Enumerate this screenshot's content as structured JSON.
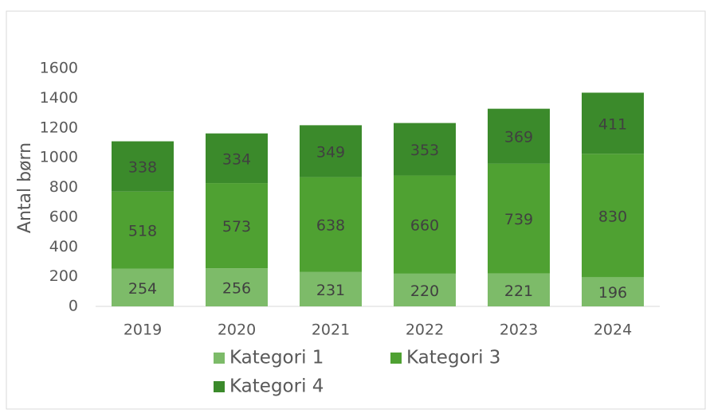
{
  "chart_data": {
    "type": "stacked_bar",
    "y_axis_label": "Antal børn",
    "categories": [
      "2019",
      "2020",
      "2021",
      "2022",
      "2023",
      "2024"
    ],
    "series": [
      {
        "name": "Kategori 1",
        "color": "#7dbb69",
        "values": [
          254,
          256,
          231,
          220,
          221,
          196
        ]
      },
      {
        "name": "Kategori 3",
        "color": "#4fa132",
        "values": [
          518,
          573,
          638,
          660,
          739,
          830
        ]
      },
      {
        "name": "Kategori 4",
        "color": "#3b8a2b",
        "values": [
          338,
          334,
          349,
          353,
          369,
          411
        ]
      }
    ],
    "ylim": [
      0,
      1600
    ],
    "yticks": [
      0,
      200,
      400,
      600,
      800,
      1000,
      1200,
      1400,
      1600
    ],
    "legend": "bottom"
  }
}
